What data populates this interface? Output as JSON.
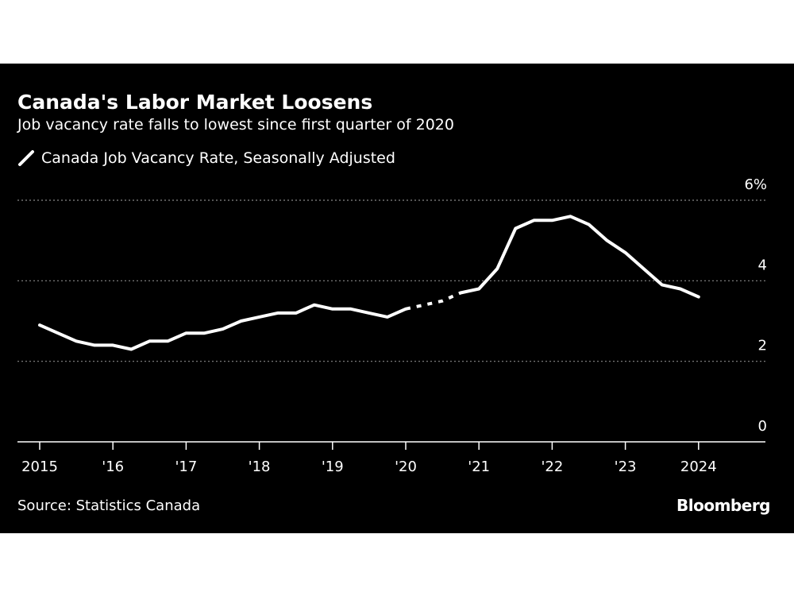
{
  "header": {
    "title": "Canada's Labor Market Loosens",
    "subtitle": "Job vacancy rate falls to lowest since first quarter of 2020"
  },
  "footer": {
    "source": "Source: Statistics Canada",
    "brand": "Bloomberg"
  },
  "colors": {
    "background": "#000000",
    "line": "#ffffff",
    "grid": "#888888"
  },
  "chart_data": {
    "type": "line",
    "title": "Canada's Labor Market Loosens",
    "subtitle": "Job vacancy rate falls to lowest since first quarter of 2020",
    "xlabel": "",
    "ylabel": "",
    "ylim": [
      0,
      6
    ],
    "xlim": [
      2015.0,
      2025.0
    ],
    "grid": true,
    "legend_position": "top-left",
    "y_ticks": [
      {
        "value": 6,
        "label": "6%"
      },
      {
        "value": 4,
        "label": "4"
      },
      {
        "value": 2,
        "label": "2"
      },
      {
        "value": 0,
        "label": "0"
      }
    ],
    "x_ticks": [
      {
        "value": 2015,
        "label": "2015"
      },
      {
        "value": 2016,
        "label": "'16"
      },
      {
        "value": 2017,
        "label": "'17"
      },
      {
        "value": 2018,
        "label": "'18"
      },
      {
        "value": 2019,
        "label": "'19"
      },
      {
        "value": 2020,
        "label": "'20"
      },
      {
        "value": 2021,
        "label": "'21"
      },
      {
        "value": 2022,
        "label": "'22"
      },
      {
        "value": 2023,
        "label": "'23"
      },
      {
        "value": 2024,
        "label": "2024"
      }
    ],
    "series": [
      {
        "name": "Canada Job Vacancy Rate, Seasonally Adjusted",
        "segments": [
          {
            "style": "solid",
            "points": [
              [
                2015.0,
                2.9
              ],
              [
                2015.25,
                2.7
              ],
              [
                2015.5,
                2.5
              ],
              [
                2015.75,
                2.4
              ],
              [
                2016.0,
                2.4
              ],
              [
                2016.25,
                2.3
              ],
              [
                2016.5,
                2.5
              ],
              [
                2016.75,
                2.5
              ],
              [
                2017.0,
                2.7
              ],
              [
                2017.25,
                2.7
              ],
              [
                2017.5,
                2.8
              ],
              [
                2017.75,
                3.0
              ],
              [
                2018.0,
                3.1
              ],
              [
                2018.25,
                3.2
              ],
              [
                2018.5,
                3.2
              ],
              [
                2018.75,
                3.4
              ],
              [
                2019.0,
                3.3
              ],
              [
                2019.25,
                3.3
              ],
              [
                2019.5,
                3.2
              ],
              [
                2019.75,
                3.1
              ],
              [
                2020.0,
                3.3
              ]
            ]
          },
          {
            "style": "dotted",
            "points": [
              [
                2020.0,
                3.3
              ],
              [
                2020.5,
                3.5
              ],
              [
                2020.75,
                3.7
              ]
            ]
          },
          {
            "style": "solid",
            "points": [
              [
                2020.75,
                3.7
              ],
              [
                2021.0,
                3.8
              ],
              [
                2021.25,
                4.3
              ],
              [
                2021.5,
                5.3
              ],
              [
                2021.75,
                5.5
              ],
              [
                2022.0,
                5.5
              ],
              [
                2022.25,
                5.6
              ],
              [
                2022.5,
                5.4
              ],
              [
                2022.75,
                5.0
              ],
              [
                2023.0,
                4.7
              ],
              [
                2023.25,
                4.3
              ],
              [
                2023.5,
                3.9
              ],
              [
                2023.75,
                3.8
              ],
              [
                2024.0,
                3.6
              ]
            ]
          }
        ]
      }
    ]
  }
}
